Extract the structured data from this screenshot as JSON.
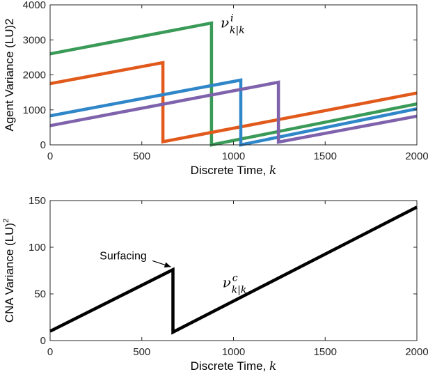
{
  "chart_data": [
    {
      "type": "line",
      "xlabel": "Discrete Time, ",
      "xlabel_var": "k",
      "ylabel": "Agent Variance (LU)2",
      "xlim": [
        0,
        2000
      ],
      "ylim": [
        0,
        4000
      ],
      "xticks": [
        "0",
        "500",
        "1000",
        "1500",
        "2000"
      ],
      "yticks": [
        "0",
        "1000",
        "2000",
        "3000",
        "4000"
      ],
      "annotation": {
        "base": "ν",
        "sup": "i",
        "sub": "k|k",
        "x": 930,
        "y": 3350
      },
      "series": [
        {
          "color": "#3a9a57",
          "x": [
            0,
            880,
            880,
            2000
          ],
          "y": [
            2600,
            3480,
            0,
            1170
          ]
        },
        {
          "color": "#e15a1c",
          "x": [
            0,
            615,
            615,
            2000
          ],
          "y": [
            1750,
            2350,
            90,
            1480
          ]
        },
        {
          "color": "#2f86c8",
          "x": [
            0,
            1040,
            1040,
            2000
          ],
          "y": [
            830,
            1850,
            0,
            1030
          ]
        },
        {
          "color": "#7f62ac",
          "x": [
            0,
            1245,
            1245,
            2000
          ],
          "y": [
            550,
            1790,
            80,
            820
          ]
        }
      ]
    },
    {
      "type": "line",
      "xlabel": "Discrete Time, ",
      "xlabel_var": "k",
      "ylabel": "CNA Variance (LU)",
      "ylabel_sup": "2",
      "xlim": [
        0,
        2000
      ],
      "ylim": [
        0,
        150
      ],
      "xticks": [
        "0",
        "500",
        "1000",
        "1500",
        "2000"
      ],
      "yticks": [
        "0",
        "50",
        "100",
        "150"
      ],
      "annotation": {
        "base": "ν",
        "sup": "c",
        "sub": "k|k",
        "x": 940,
        "y": 57
      },
      "callout": {
        "label": "Surfacing",
        "text_x": 270,
        "text_y": 87,
        "arrow_to_x": 670,
        "arrow_to_y": 76
      },
      "series": [
        {
          "color": "#000000",
          "x": [
            0,
            670,
            670,
            2000
          ],
          "y": [
            10,
            76,
            9,
            143
          ]
        }
      ]
    }
  ]
}
